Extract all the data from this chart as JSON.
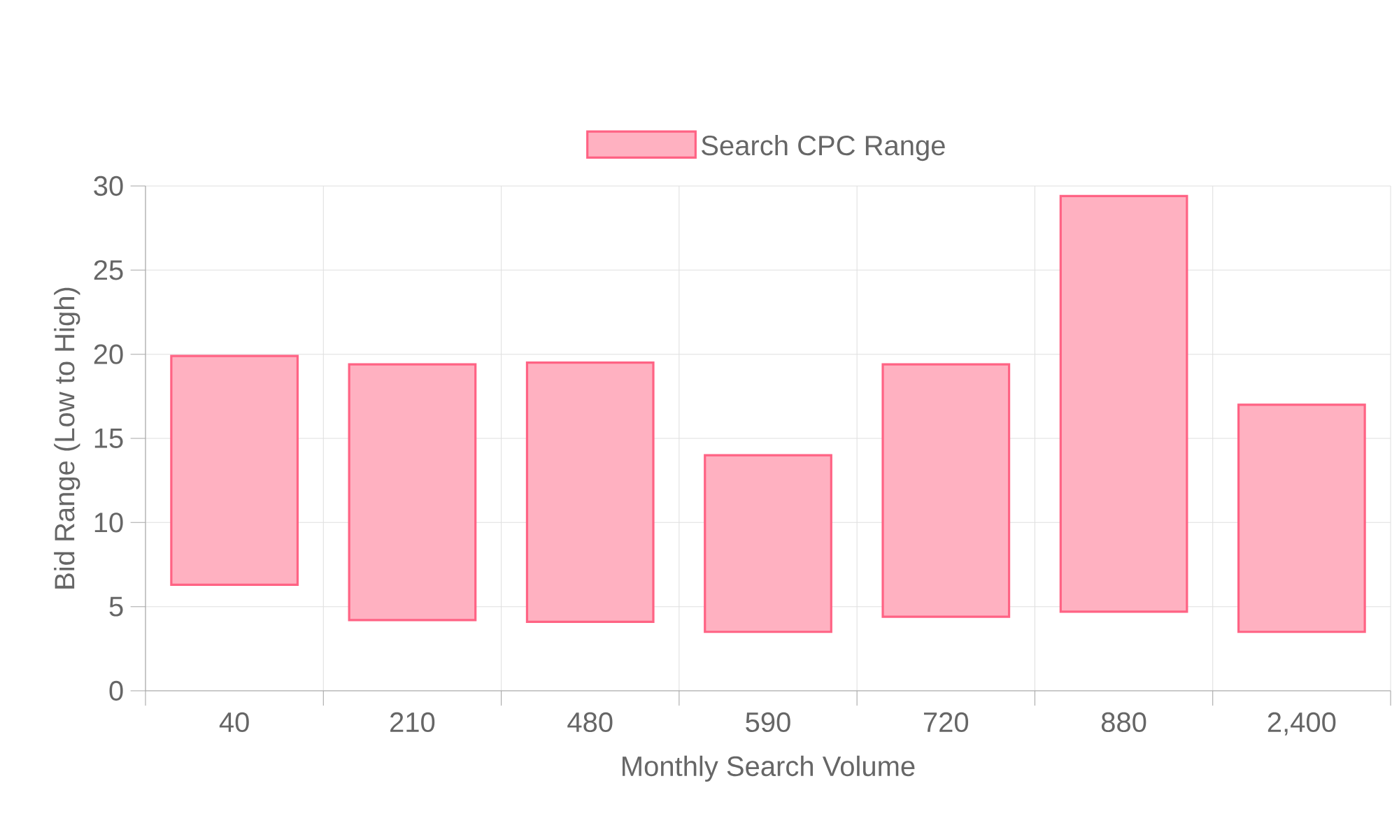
{
  "chart_data": {
    "type": "bar",
    "xlabel": "Monthly Search Volume",
    "ylabel": "Bid Range (Low to High)",
    "categories": [
      "40",
      "210",
      "480",
      "590",
      "720",
      "880",
      "2,400"
    ],
    "series": [
      {
        "name": "Search CPC Range",
        "color": "#ff6384",
        "values": [
          13.6,
          15.2,
          15.4,
          10.5,
          15.0,
          24.7,
          13.5
        ],
        "base": [
          6.3,
          4.2,
          4.1,
          3.5,
          4.4,
          4.7,
          3.5
        ]
      }
    ],
    "ylim": [
      0,
      30
    ],
    "yticks": [
      0,
      5,
      10,
      15,
      20,
      25,
      30
    ],
    "grid": true,
    "legend": "top"
  }
}
